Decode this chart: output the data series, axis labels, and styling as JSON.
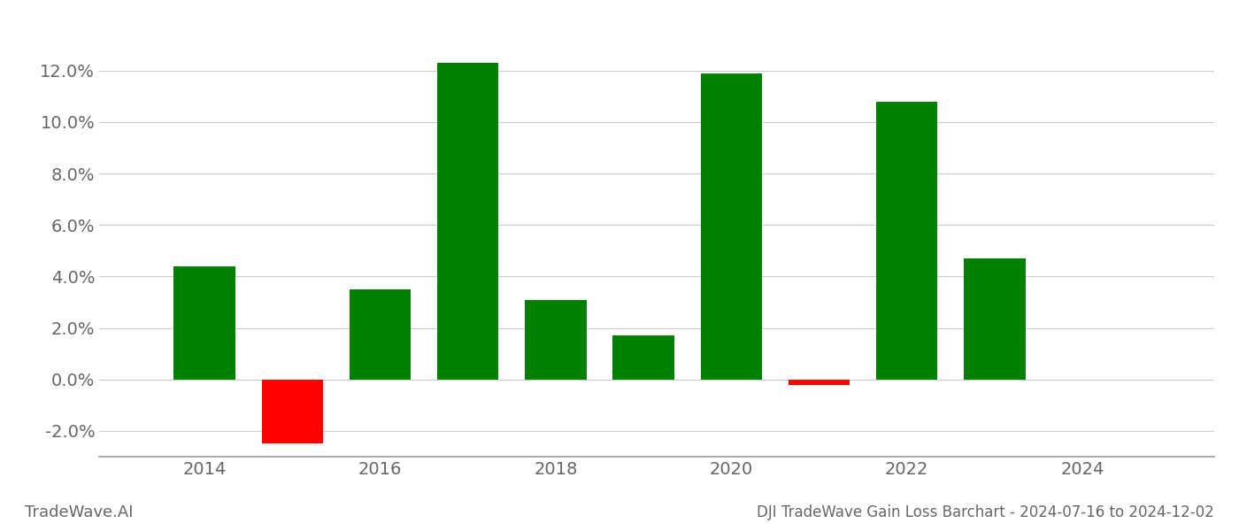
{
  "years": [
    2014,
    2015,
    2016,
    2017,
    2018,
    2019,
    2020,
    2021,
    2022,
    2023
  ],
  "values": [
    0.044,
    -0.025,
    0.035,
    0.123,
    0.031,
    0.017,
    0.119,
    -0.002,
    0.108,
    0.047
  ],
  "colors": [
    "#008000",
    "#ff0000",
    "#008000",
    "#008000",
    "#008000",
    "#008000",
    "#008000",
    "#ff0000",
    "#008000",
    "#008000"
  ],
  "title": "DJI TradeWave Gain Loss Barchart - 2024-07-16 to 2024-12-02",
  "watermark": "TradeWave.AI",
  "ylim_min": -0.03,
  "ylim_max": 0.135,
  "xlim_min": 2012.8,
  "xlim_max": 2025.5,
  "bar_width": 0.7,
  "background_color": "#ffffff",
  "grid_color": "#cccccc",
  "axis_color": "#999999",
  "text_color": "#666666",
  "xticks": [
    2014,
    2016,
    2018,
    2020,
    2022,
    2024
  ],
  "yticks": [
    -0.02,
    0.0,
    0.02,
    0.04,
    0.06,
    0.08,
    0.1,
    0.12
  ],
  "title_fontsize": 12,
  "watermark_fontsize": 13,
  "tick_fontsize": 14
}
